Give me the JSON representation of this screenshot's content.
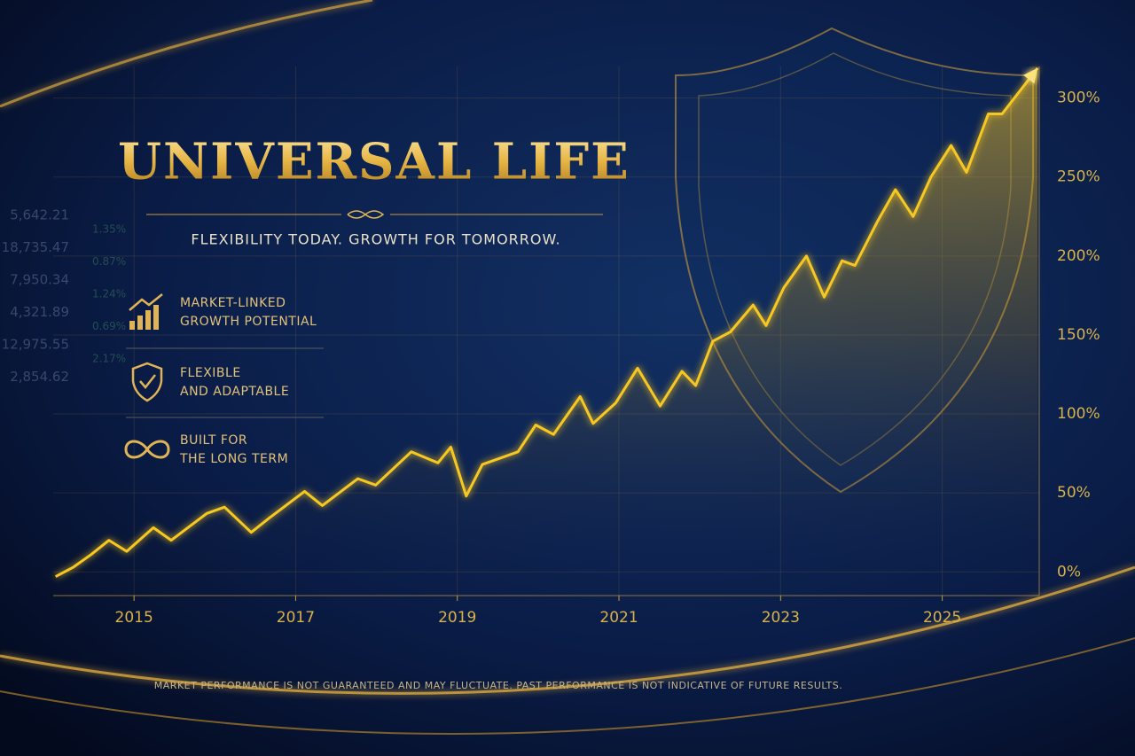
{
  "chart_data": {
    "type": "line",
    "title": "UNIVERSAL LIFE",
    "subtitle": "FLEXIBILITY TODAY. GROWTH FOR TOMORROW.",
    "features": [
      {
        "line1": "MARKET-LINKED",
        "line2": "GROWTH POTENTIAL"
      },
      {
        "line1": "FLEXIBLE",
        "line2": "AND ADAPTABLE"
      },
      {
        "line1": "BUILT FOR",
        "line2": "THE LONG TERM"
      }
    ],
    "annotation": "MARKET PERFORMANCE IS NOT GUARANTEED AND MAY FLUCTUATE. PAST PERFORMANCE IS NOT INDICATIVE OF FUTURE RESULTS.",
    "x": [
      2014.03,
      2014.25,
      2014.47,
      2014.69,
      2014.91,
      2015.24,
      2015.46,
      2015.9,
      2016.12,
      2016.45,
      2016.67,
      2017.11,
      2017.33,
      2017.77,
      2017.99,
      2018.43,
      2018.76,
      2018.92,
      2019.11,
      2019.31,
      2019.75,
      2019.97,
      2020.19,
      2020.52,
      2020.68,
      2020.96,
      2021.23,
      2021.51,
      2021.78,
      2021.95,
      2022.16,
      2022.38,
      2022.66,
      2022.82,
      2023.04,
      2023.32,
      2023.54,
      2023.76,
      2023.92,
      2024.2,
      2024.42,
      2024.64,
      2024.86,
      2025.11,
      2025.3,
      2025.57,
      2025.74,
      2026.18
    ],
    "values": [
      -3,
      3,
      11,
      20,
      13,
      28,
      20,
      37,
      41,
      25,
      34,
      51,
      42,
      59,
      55,
      76,
      69,
      79,
      48,
      68,
      76,
      93,
      87,
      111,
      94,
      107,
      129,
      105,
      127,
      118,
      146,
      152,
      169,
      156,
      180,
      200,
      174,
      197,
      194,
      222,
      242,
      225,
      250,
      270,
      253,
      290,
      290,
      319
    ],
    "color": "#f7c820",
    "xlim": [
      2014,
      2026.2
    ],
    "xticks": [
      2015,
      2017,
      2019,
      2021,
      2023,
      2025
    ],
    "ylim": [
      -15,
      320
    ],
    "yticks": [
      {
        "value": 0,
        "label": "0%"
      },
      {
        "value": 50,
        "label": "50%"
      },
      {
        "value": 100,
        "label": "100%"
      },
      {
        "value": 150,
        "label": "150%"
      },
      {
        "value": 200,
        "label": "200%"
      },
      {
        "value": 250,
        "label": "250%"
      },
      {
        "value": 300,
        "label": "300%"
      }
    ],
    "grid": true
  },
  "ticker": [
    {
      "price": "5,642.21",
      "change": "1.35%"
    },
    {
      "price": "18,735.47",
      "change": "0.87%"
    },
    {
      "price": "7,950.34",
      "change": "1.24%"
    },
    {
      "price": "4,321.89",
      "change": "0.69%"
    },
    {
      "price": "12,975.55",
      "change": "2.17%"
    },
    {
      "price": "2,854.62",
      "change": null
    }
  ]
}
